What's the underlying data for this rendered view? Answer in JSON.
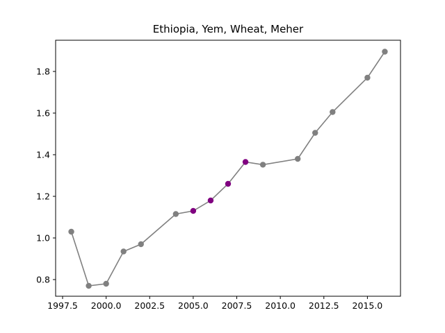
{
  "chart_data": {
    "type": "line",
    "title": "Ethiopia, Yem, Wheat, Meher",
    "xlabel": "",
    "ylabel": "",
    "xlim": [
      1997.1,
      2016.9
    ],
    "ylim": [
      0.72,
      1.95
    ],
    "x_ticks": [
      1997.5,
      2000.0,
      2002.5,
      2005.0,
      2007.5,
      2010.0,
      2012.5,
      2015.0
    ],
    "x_tick_labels": [
      "1997.5",
      "2000.0",
      "2002.5",
      "2005.0",
      "2007.5",
      "2010.0",
      "2012.5",
      "2015.0"
    ],
    "y_ticks": [
      0.8,
      1.0,
      1.2,
      1.4,
      1.6,
      1.8
    ],
    "y_tick_labels": [
      "0.8",
      "1.0",
      "1.2",
      "1.4",
      "1.6",
      "1.8"
    ],
    "grid": false,
    "line_color": "#808080",
    "series": [
      {
        "x": [
          1998,
          1999,
          2000,
          2001,
          2002,
          2004,
          2005,
          2006,
          2007,
          2008,
          2009,
          2011,
          2012,
          2013,
          2015,
          2016
        ],
        "y": [
          1.03,
          0.77,
          0.78,
          0.935,
          0.97,
          1.115,
          1.13,
          1.18,
          1.26,
          1.365,
          1.352,
          1.38,
          1.505,
          1.605,
          1.77,
          1.895
        ],
        "highlight": [
          false,
          false,
          false,
          false,
          false,
          false,
          true,
          true,
          true,
          true,
          false,
          false,
          false,
          false,
          false,
          false
        ]
      }
    ],
    "marker_color": "#808080",
    "highlight_color": "#800080"
  }
}
